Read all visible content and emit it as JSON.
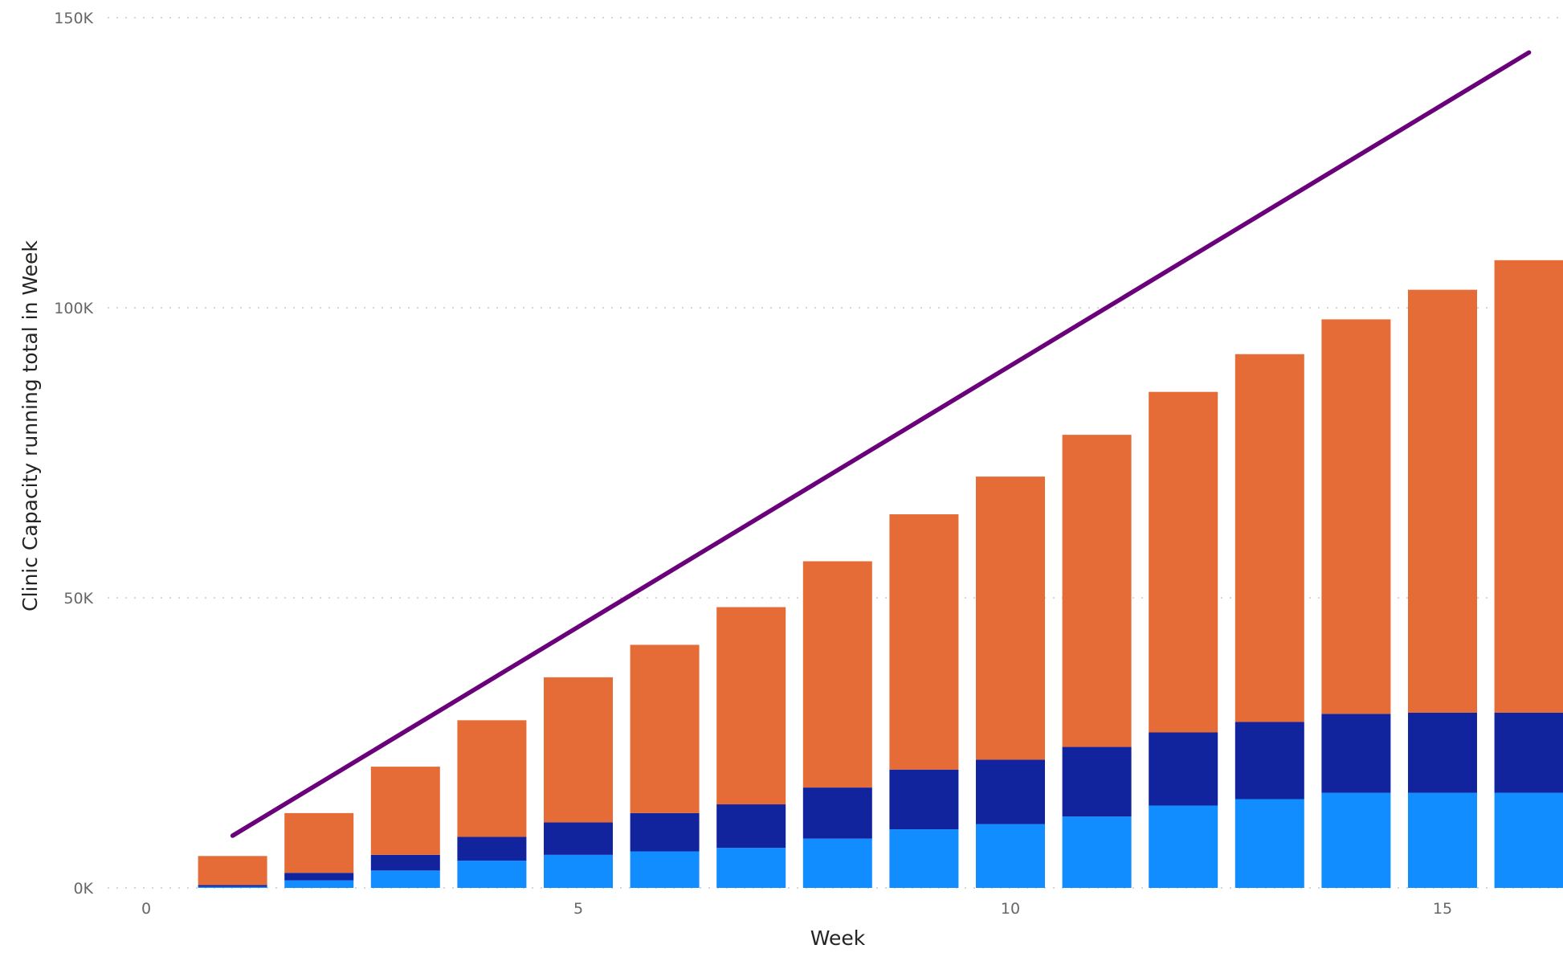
{
  "chart_data": {
    "type": "bar",
    "stacked": true,
    "xlabel": "Week",
    "ylabel": "Clinic Capacity running total in Week",
    "x_ticks": [
      "0",
      "5",
      "10",
      "15"
    ],
    "y_ticks": [
      "0K",
      "50K",
      "100K",
      "150K"
    ],
    "ylim": [
      0,
      150000
    ],
    "xlim": [
      0,
      16.4
    ],
    "grid": true,
    "categories": [
      1,
      2,
      3,
      4,
      5,
      6,
      7,
      8,
      9,
      10,
      11,
      12,
      13,
      14,
      15,
      16
    ],
    "series": [
      {
        "kind": "bar",
        "color": "#118DFF",
        "values": [
          200,
          1300,
          3000,
          4700,
          5700,
          6300,
          6900,
          8500,
          10100,
          11000,
          12300,
          14200,
          15300,
          16400,
          16400,
          16400
        ]
      },
      {
        "kind": "bar",
        "color": "#12239E",
        "values": [
          300,
          1300,
          2700,
          4100,
          5600,
          6600,
          7500,
          8800,
          10300,
          11100,
          12000,
          12600,
          13300,
          13600,
          13800,
          13800
        ]
      },
      {
        "kind": "bar",
        "color": "#E66C37",
        "values": [
          5000,
          10300,
          15200,
          20100,
          25000,
          29000,
          34000,
          39000,
          44000,
          48800,
          53800,
          58700,
          63400,
          68000,
          72900,
          78000
        ]
      },
      {
        "kind": "line",
        "color": "#6B007B",
        "x": [
          1,
          16
        ],
        "values": [
          9000,
          144000
        ]
      }
    ]
  }
}
